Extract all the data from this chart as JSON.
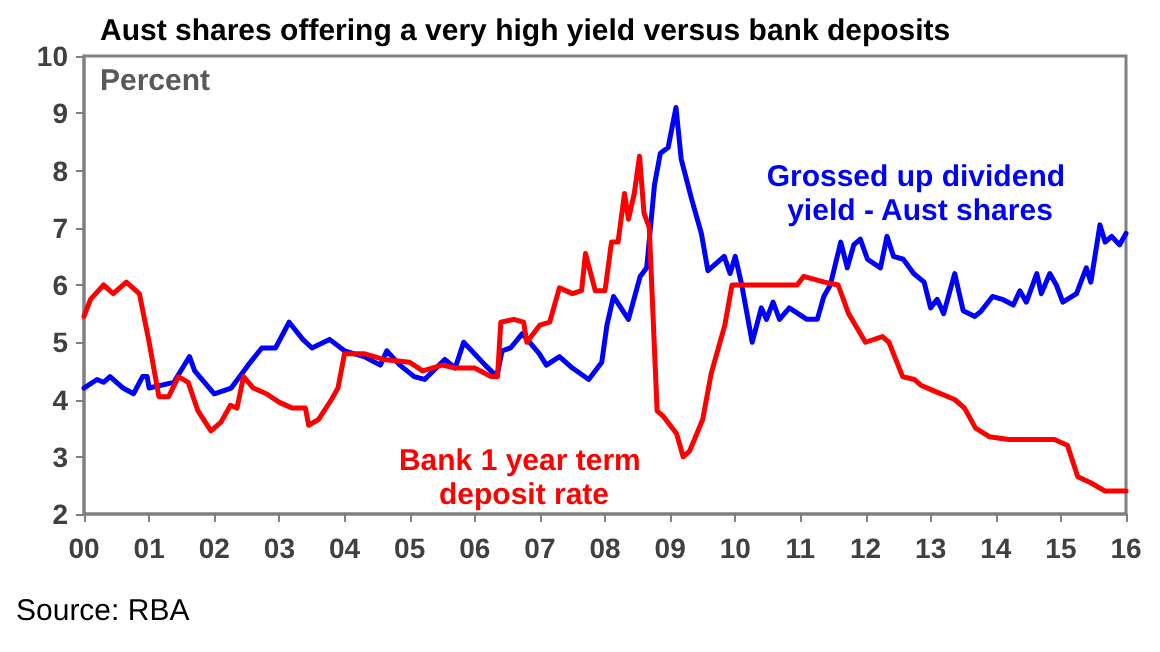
{
  "chart_data": {
    "type": "line",
    "title": "Aust shares offering a very high yield versus bank deposits",
    "ylabel": "Percent",
    "annotations": [
      "Source: RBA"
    ],
    "xlim": [
      0,
      16
    ],
    "xticks": [
      {
        "value": 0,
        "label": "00"
      },
      {
        "value": 1,
        "label": "01"
      },
      {
        "value": 2,
        "label": "02"
      },
      {
        "value": 3,
        "label": "03"
      },
      {
        "value": 4,
        "label": "04"
      },
      {
        "value": 5,
        "label": "05"
      },
      {
        "value": 6,
        "label": "06"
      },
      {
        "value": 7,
        "label": "07"
      },
      {
        "value": 8,
        "label": "08"
      },
      {
        "value": 9,
        "label": "09"
      },
      {
        "value": 10,
        "label": "10"
      },
      {
        "value": 11,
        "label": "11"
      },
      {
        "value": 12,
        "label": "12"
      },
      {
        "value": 13,
        "label": "13"
      },
      {
        "value": 14,
        "label": "14"
      },
      {
        "value": 15,
        "label": "15"
      },
      {
        "value": 16,
        "label": "16"
      }
    ],
    "ylim": [
      2,
      10
    ],
    "yticks": [
      2,
      3,
      4,
      5,
      6,
      7,
      8,
      9,
      10
    ],
    "grid": false,
    "legend": false,
    "marker": "none",
    "line_style": "solid",
    "series": [
      {
        "name": "Grossed up dividend yield - Aust shares",
        "color": "#0000ff",
        "x": [
          0,
          0.2,
          0.3,
          0.4,
          0.6,
          0.76,
          0.9,
          0.97,
          1.0,
          1.38,
          1.62,
          1.7,
          2.0,
          2.26,
          2.52,
          2.73,
          2.94,
          3.15,
          3.36,
          3.5,
          3.77,
          4.0,
          4.3,
          4.55,
          4.65,
          4.85,
          5.07,
          5.23,
          5.54,
          5.7,
          5.83,
          6.16,
          6.34,
          6.42,
          6.55,
          6.73,
          6.99,
          7.1,
          7.3,
          7.5,
          7.75,
          7.95,
          8.03,
          8.13,
          8.36,
          8.54,
          8.64,
          8.76,
          8.85,
          8.97,
          9.09,
          9.17,
          9.33,
          9.48,
          9.58,
          9.83,
          9.92,
          10.0,
          10.1,
          10.26,
          10.4,
          10.48,
          10.58,
          10.68,
          10.83,
          11.1,
          11.26,
          11.36,
          11.46,
          11.62,
          11.72,
          11.82,
          11.92,
          12.03,
          12.23,
          12.33,
          12.43,
          12.58,
          12.74,
          12.9,
          13.0,
          13.1,
          13.2,
          13.37,
          13.5,
          13.68,
          13.78,
          13.95,
          14.1,
          14.27,
          14.37,
          14.47,
          14.63,
          14.7,
          14.83,
          14.93,
          15.03,
          15.24,
          15.39,
          15.46,
          15.6,
          15.68,
          15.78,
          15.9,
          16.0
        ],
        "values": [
          4.2,
          4.35,
          4.3,
          4.4,
          4.2,
          4.1,
          4.4,
          4.4,
          4.2,
          4.3,
          4.75,
          4.5,
          4.1,
          4.2,
          4.6,
          4.9,
          4.9,
          5.35,
          5.05,
          4.9,
          5.05,
          4.85,
          4.75,
          4.6,
          4.85,
          4.6,
          4.4,
          4.35,
          4.7,
          4.55,
          5.0,
          4.6,
          4.4,
          4.85,
          4.9,
          5.15,
          4.8,
          4.6,
          4.75,
          4.55,
          4.35,
          4.65,
          5.3,
          5.8,
          5.4,
          6.15,
          6.3,
          7.75,
          8.3,
          8.4,
          9.1,
          8.2,
          7.5,
          6.9,
          6.25,
          6.5,
          6.2,
          6.5,
          6.0,
          5.0,
          5.6,
          5.4,
          5.7,
          5.4,
          5.6,
          5.4,
          5.4,
          5.8,
          6.0,
          6.75,
          6.3,
          6.7,
          6.8,
          6.45,
          6.3,
          6.85,
          6.5,
          6.45,
          6.2,
          6.05,
          5.6,
          5.75,
          5.5,
          6.2,
          5.55,
          5.45,
          5.55,
          5.8,
          5.75,
          5.65,
          5.9,
          5.7,
          6.2,
          5.85,
          6.2,
          6.0,
          5.7,
          5.85,
          6.3,
          6.05,
          7.05,
          6.75,
          6.85,
          6.7,
          6.9
        ]
      },
      {
        "name": "Bank 1 year term deposit rate",
        "color": "#ff0000",
        "x": [
          0,
          0.1,
          0.3,
          0.45,
          0.65,
          0.85,
          1.0,
          1.15,
          1.3,
          1.45,
          1.6,
          1.75,
          1.95,
          2.1,
          2.25,
          2.35,
          2.45,
          2.6,
          2.8,
          3.0,
          3.2,
          3.4,
          3.45,
          3.6,
          3.8,
          3.9,
          4.0,
          4.3,
          4.6,
          5.0,
          5.2,
          5.5,
          5.7,
          6.0,
          6.25,
          6.35,
          6.4,
          6.6,
          6.75,
          6.8,
          7.0,
          7.15,
          7.3,
          7.5,
          7.64,
          7.7,
          7.85,
          8.0,
          8.1,
          8.2,
          8.3,
          8.36,
          8.45,
          8.53,
          8.6,
          8.68,
          8.8,
          8.9,
          9.1,
          9.2,
          9.3,
          9.5,
          9.63,
          9.84,
          9.95,
          10.95,
          11.05,
          11.37,
          11.58,
          11.74,
          12.0,
          12.26,
          12.36,
          12.57,
          12.75,
          12.85,
          13.05,
          13.37,
          13.52,
          13.69,
          13.9,
          14.2,
          14.9,
          15.1,
          15.26,
          15.45,
          15.68,
          16.0
        ],
        "values": [
          5.45,
          5.75,
          6.0,
          5.85,
          6.05,
          5.85,
          5.0,
          4.05,
          4.05,
          4.4,
          4.3,
          3.8,
          3.45,
          3.6,
          3.9,
          3.85,
          4.4,
          4.2,
          4.1,
          3.95,
          3.85,
          3.85,
          3.55,
          3.65,
          4.0,
          4.2,
          4.8,
          4.8,
          4.7,
          4.65,
          4.5,
          4.6,
          4.55,
          4.55,
          4.4,
          4.4,
          5.35,
          5.4,
          5.35,
          5.0,
          5.3,
          5.35,
          5.95,
          5.85,
          5.9,
          6.55,
          5.9,
          5.9,
          6.75,
          6.75,
          7.6,
          7.15,
          7.6,
          8.25,
          7.25,
          7.0,
          3.8,
          3.7,
          3.4,
          3.0,
          3.1,
          3.65,
          4.45,
          5.3,
          6.0,
          6.0,
          6.15,
          6.05,
          6.0,
          5.5,
          5.0,
          5.1,
          5.0,
          4.4,
          4.35,
          4.25,
          4.15,
          4.0,
          3.85,
          3.5,
          3.35,
          3.3,
          3.3,
          3.2,
          2.65,
          2.55,
          2.4,
          2.4
        ]
      }
    ]
  }
}
